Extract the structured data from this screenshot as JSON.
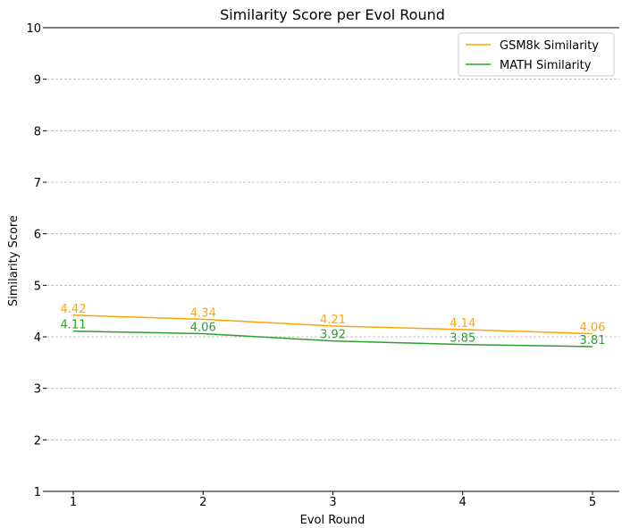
{
  "chart_data": {
    "type": "line",
    "title": "Similarity Score per Evol Round",
    "xlabel": "Evol Round",
    "ylabel": "Similarity Score",
    "x": [
      1,
      2,
      3,
      4,
      5
    ],
    "xticks": [
      "1",
      "2",
      "3",
      "4",
      "5"
    ],
    "ylim": [
      1,
      10
    ],
    "yticks": [
      "1",
      "2",
      "3",
      "4",
      "5",
      "6",
      "7",
      "8",
      "9",
      "10"
    ],
    "grid": "horizontal dashed",
    "legend_position": "top-right",
    "series": [
      {
        "name": "GSM8k Similarity",
        "color": "#FFA500",
        "values": [
          4.42,
          4.34,
          4.21,
          4.14,
          4.06
        ],
        "labels": [
          "4.42",
          "4.34",
          "4.21",
          "4.14",
          "4.06"
        ]
      },
      {
        "name": "MATH Similarity",
        "color": "#2CA02C",
        "values": [
          4.11,
          4.06,
          3.92,
          3.85,
          3.81
        ],
        "labels": [
          "4.11",
          "4.06",
          "3.92",
          "3.85",
          "3.81"
        ]
      }
    ]
  }
}
